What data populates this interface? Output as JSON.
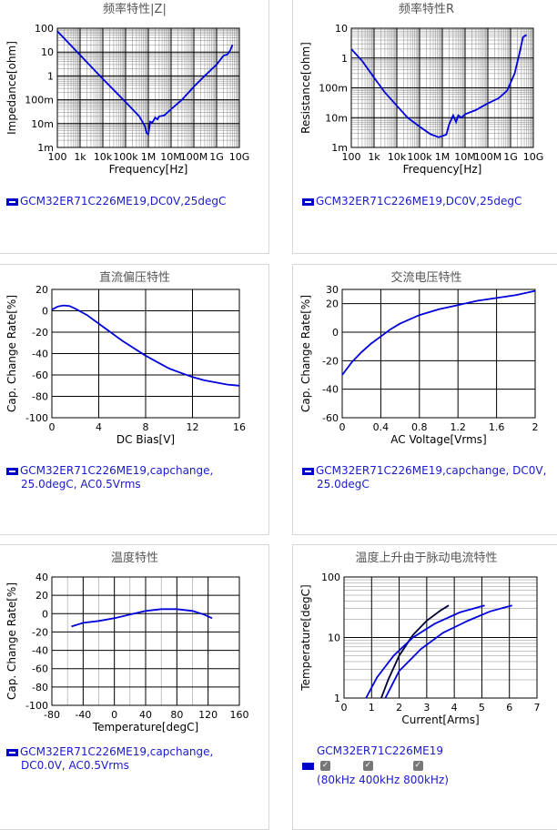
{
  "panels": [
    {
      "legend": "GCM32ER71C226ME19,DC0V,25degC",
      "chart_data": {
        "type": "line",
        "title": "频率特性|Z|",
        "xlabel": "Frequency[Hz]",
        "ylabel": "Impedance[ohm]",
        "xscale": "log",
        "yscale": "log",
        "xlim": [
          100,
          10000000000
        ],
        "ylim": [
          0.001,
          100
        ],
        "xticklabels": [
          "100",
          "1k",
          "10k",
          "100k",
          "1M",
          "10M",
          "100M",
          "1G",
          "10G"
        ],
        "yticklabels": [
          "1m",
          "10m",
          "100m",
          "1",
          "10",
          "100"
        ],
        "series": [
          {
            "color": "#0000dd",
            "x": [
              100,
              1000,
              10000,
              100000,
              400000,
              700000,
              850000,
              1000000,
              1200000,
              1500000,
              2000000,
              2500000,
              3000000,
              5000000,
              10000000,
              30000000,
              100000000,
              300000000,
              1000000000,
              2000000000,
              3000000000,
              4000000000,
              5000000000
            ],
            "y": [
              75,
              7.5,
              0.75,
              0.08,
              0.02,
              0.008,
              0.004,
              0.0035,
              0.012,
              0.011,
              0.018,
              0.015,
              0.02,
              0.022,
              0.04,
              0.1,
              0.35,
              1,
              3,
              7,
              8,
              12,
              20
            ]
          }
        ]
      }
    },
    {
      "legend": "GCM32ER71C226ME19,DC0V,25degC",
      "chart_data": {
        "type": "line",
        "title": "频率特性R",
        "xlabel": "Frequency[Hz]",
        "ylabel": "Resistance[ohm]",
        "xscale": "log",
        "yscale": "log",
        "xlim": [
          100,
          10000000000
        ],
        "ylim": [
          0.001,
          10
        ],
        "xticklabels": [
          "100",
          "1k",
          "10k",
          "100k",
          "1M",
          "10M",
          "100M",
          "1G",
          "10G"
        ],
        "yticklabels": [
          "1m",
          "10m",
          "100m",
          "1",
          "10"
        ],
        "series": [
          {
            "color": "#0000dd",
            "x": [
              100,
              300,
              1000,
              3000,
              10000,
              30000,
              100000,
              300000,
              700000,
              1500000,
              2000000,
              3000000,
              4000000,
              5000000,
              7000000,
              10000000,
              30000000,
              100000000,
              300000000,
              700000000,
              1500000000,
              2500000000,
              3500000000,
              5000000000
            ],
            "y": [
              2,
              0.8,
              0.22,
              0.07,
              0.025,
              0.01,
              0.005,
              0.0028,
              0.0022,
              0.0027,
              0.006,
              0.012,
              0.007,
              0.012,
              0.01,
              0.013,
              0.018,
              0.03,
              0.045,
              0.08,
              0.3,
              1.5,
              5,
              6
            ]
          }
        ]
      }
    },
    {
      "legend": "GCM32ER71C226ME19,capchange,25.0degC, AC0.5Vrms",
      "legend_lines": [
        "GCM32ER71C226ME19,capchange,",
        "25.0degC, AC0.5Vrms"
      ],
      "chart_data": {
        "type": "line",
        "title": "直流偏压特性",
        "xlabel": "DC Bias[V]",
        "ylabel": "Cap. Change Rate[%]",
        "xlim": [
          0,
          16
        ],
        "ylim": [
          -100,
          20
        ],
        "xticks": [
          0,
          4,
          8,
          12,
          16
        ],
        "yticks": [
          20,
          0,
          -20,
          -40,
          -60,
          -80,
          -100
        ],
        "series": [
          {
            "color": "#0000dd",
            "x": [
              0,
              0.5,
              1,
              1.5,
              2,
              3,
              4,
              5,
              6,
              7,
              8,
              9,
              10,
              11,
              12,
              13,
              14,
              15,
              16
            ],
            "y": [
              1,
              4,
              5,
              4.5,
              2,
              -4,
              -12,
              -20,
              -28,
              -35,
              -42,
              -48,
              -54,
              -58,
              -62,
              -65,
              -67,
              -69,
              -70
            ]
          }
        ]
      }
    },
    {
      "legend": "GCM32ER71C226ME19,capchange, DC0V, 25.0degC",
      "legend_lines": [
        "GCM32ER71C226ME19,capchange, DC0V,",
        "25.0degC"
      ],
      "chart_data": {
        "type": "line",
        "title": "交流电压特性",
        "xlabel": "AC Voltage[Vrms]",
        "ylabel": "Cap. Change Rate[%]",
        "xlim": [
          0,
          2
        ],
        "ylim": [
          -60,
          30
        ],
        "xticks": [
          0,
          0.4,
          0.8,
          1.2,
          1.6,
          2
        ],
        "yticks": [
          30,
          20,
          0,
          -20,
          -40,
          -60
        ],
        "series": [
          {
            "color": "#0000dd",
            "x": [
              0,
              0.1,
              0.2,
              0.3,
              0.4,
              0.5,
              0.6,
              0.8,
              1.0,
              1.2,
              1.4,
              1.6,
              1.8,
              2.0
            ],
            "y": [
              -30,
              -21,
              -14,
              -8,
              -3,
              2,
              6,
              12,
              16,
              19,
              22,
              24,
              26,
              29
            ]
          }
        ]
      }
    },
    {
      "legend": "GCM32ER71C226ME19,capchange, DC0.0V, AC0.5Vrms",
      "legend_lines": [
        "GCM32ER71C226ME19,capchange,",
        "DC0.0V, AC0.5Vrms"
      ],
      "chart_data": {
        "type": "line",
        "title": "温度特性",
        "xlabel": "Temperature[degC]",
        "ylabel": "Cap. Change Rate[%]",
        "xlim": [
          -80,
          160
        ],
        "ylim": [
          -100,
          40
        ],
        "xticks": [
          -80,
          -40,
          0,
          40,
          80,
          120,
          160
        ],
        "yticks": [
          40,
          20,
          0,
          -20,
          -40,
          -60,
          -80,
          -100
        ],
        "vgrid": [
          -60,
          -40,
          -20,
          0,
          20,
          40,
          60,
          80,
          100,
          120
        ],
        "series": [
          {
            "color": "#0000dd",
            "x": [
              -55,
              -40,
              -20,
              0,
              20,
              40,
              60,
              80,
              100,
              115,
              125
            ],
            "y": [
              -14,
              -10,
              -8,
              -5,
              -1,
              3,
              5,
              5,
              3,
              -1,
              -5
            ]
          }
        ]
      }
    },
    {
      "legend": "GCM32ER71C226ME19",
      "freq_labels": [
        "80kHz",
        "400kHz",
        "800kHz"
      ],
      "chart_data": {
        "type": "line",
        "title": "温度上升由于脉动电流特性",
        "xlabel": "Current[Arms]",
        "ylabel": "Temperature[degC]",
        "yscale": "log",
        "xlim": [
          0,
          7
        ],
        "ylim": [
          1,
          100
        ],
        "xticks": [
          0,
          1,
          2,
          3,
          4,
          5,
          6,
          7
        ],
        "yticklabels": [
          "1",
          "10",
          "100"
        ],
        "series": [
          {
            "name": "80kHz",
            "color": "#000033",
            "x": [
              1.35,
              1.6,
              2,
              2.5,
              3,
              3.5,
              3.8
            ],
            "y": [
              1,
              2,
              5,
              11,
              19,
              28,
              34
            ]
          },
          {
            "name": "400kHz",
            "color": "#0000dd",
            "x": [
              0.8,
              1.2,
              1.8,
              2.5,
              3.3,
              4.2,
              5.1
            ],
            "y": [
              1,
              2.2,
              5,
              10,
              17,
              26,
              34
            ]
          },
          {
            "name": "800kHz",
            "color": "#0000dd",
            "x": [
              1.5,
              2,
              2.8,
              3.6,
              4.5,
              5.3,
              6.1
            ],
            "y": [
              1,
              2.8,
              6.5,
              12,
              19,
              27,
              34
            ]
          }
        ]
      }
    }
  ]
}
